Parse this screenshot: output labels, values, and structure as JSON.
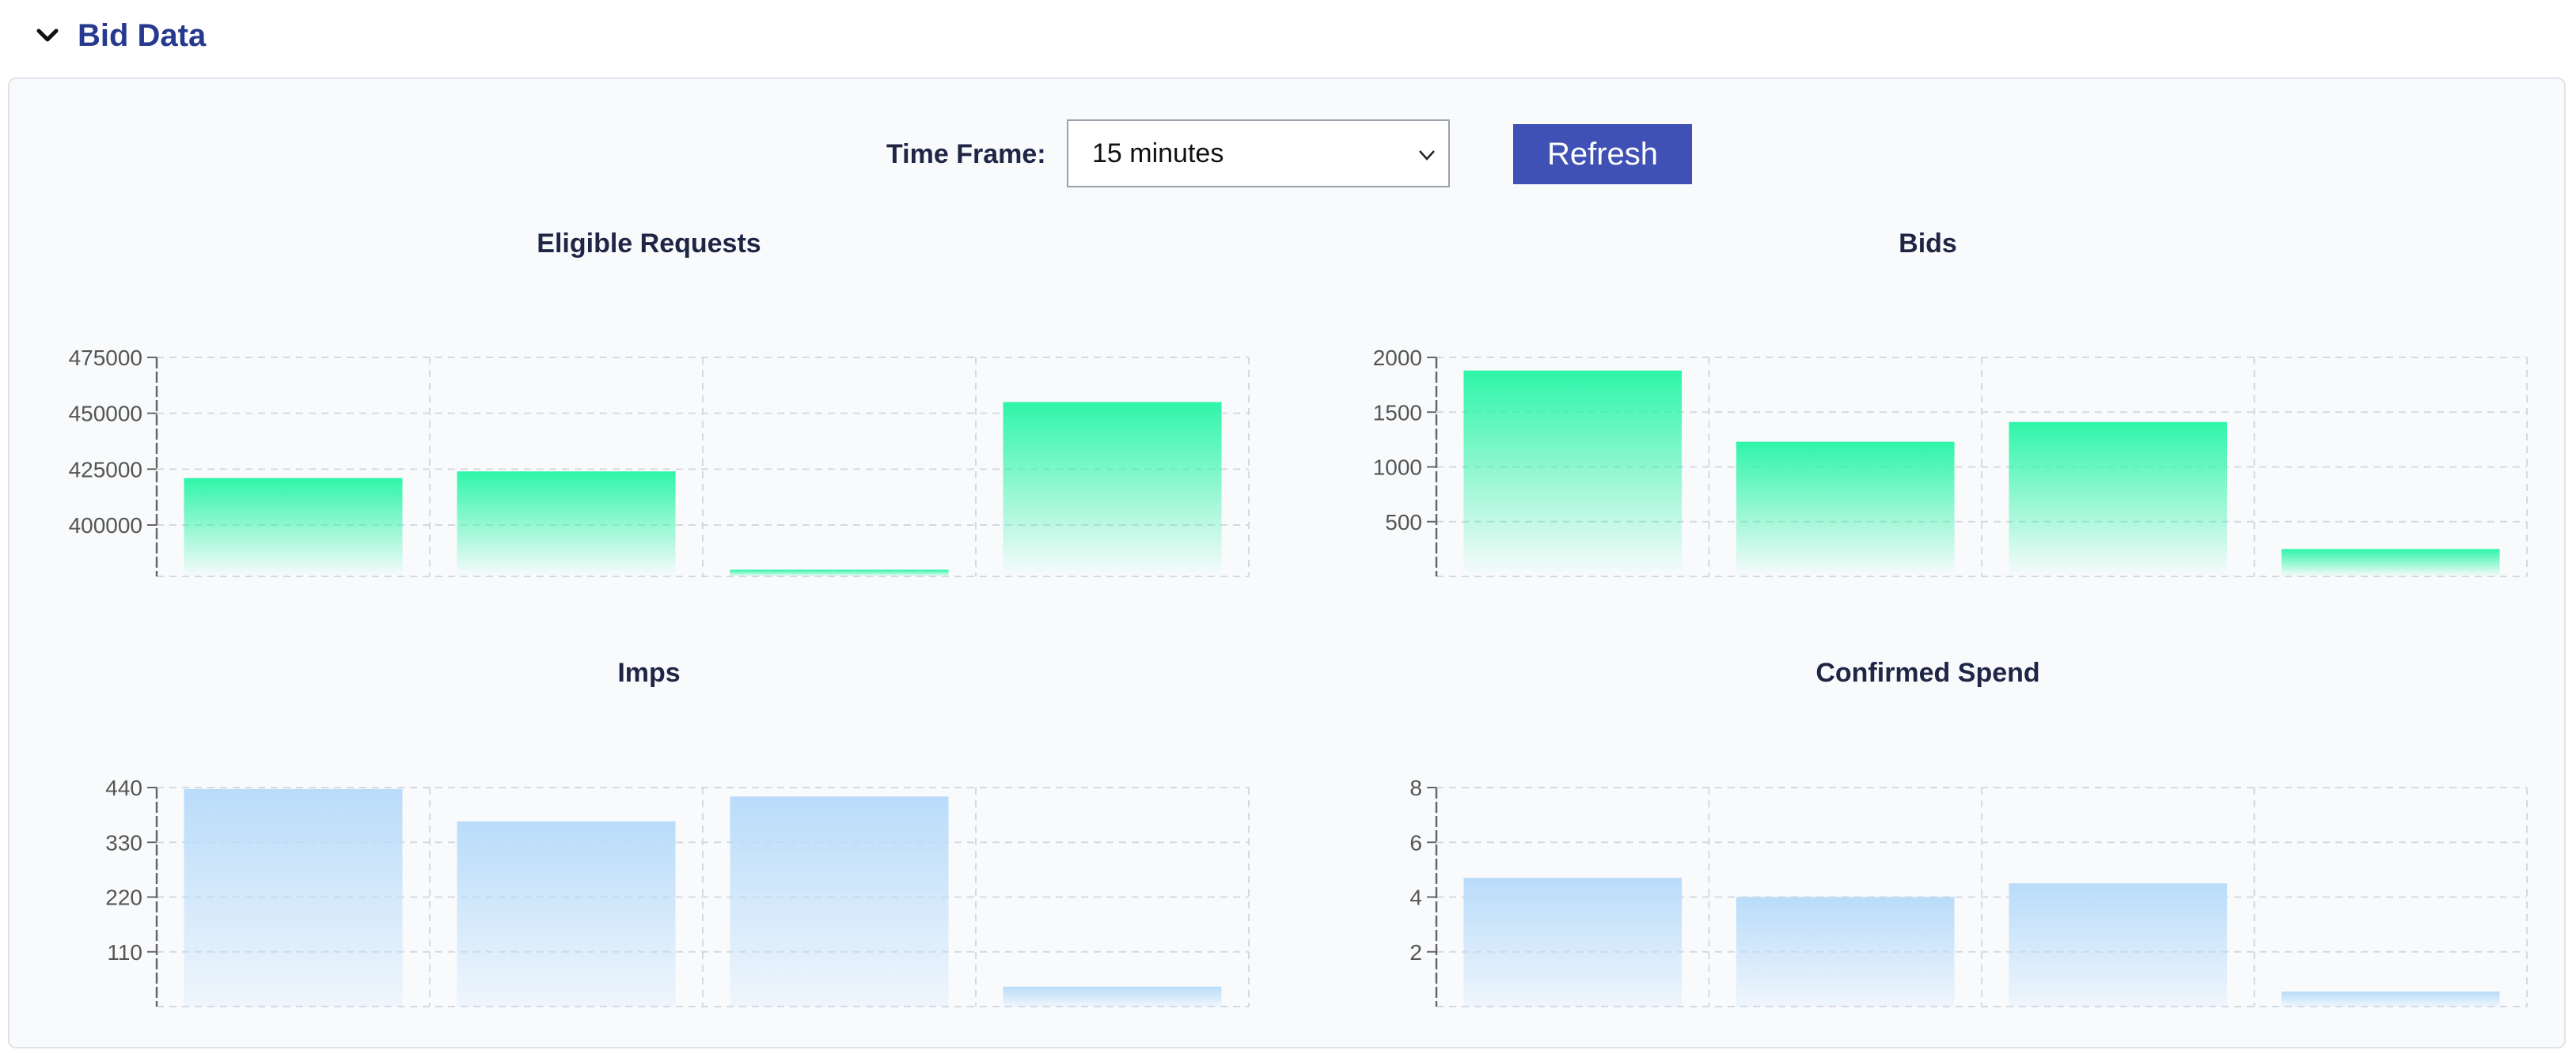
{
  "section": {
    "title": "Bid Data",
    "icon": "chevron-down-icon"
  },
  "controls": {
    "timeframe_label": "Time Frame:",
    "timeframe_value": "15 minutes",
    "refresh_label": "Refresh"
  },
  "colors": {
    "header_text": "#26398f",
    "button": "#3f51b5",
    "green_bar": "#2ef5a8",
    "blue_bar": "#b9dcfa"
  },
  "chart_data": [
    {
      "type": "bar",
      "title": "Eligible Requests",
      "categories": [
        "",
        "",
        "",
        ""
      ],
      "values": [
        421000,
        424000,
        380000,
        455000
      ],
      "yticks": [
        400000,
        425000,
        450000,
        475000
      ],
      "ylim": [
        377000,
        475000
      ],
      "grid": true,
      "color": "green"
    },
    {
      "type": "bar",
      "title": "Bids",
      "categories": [
        "",
        "",
        "",
        ""
      ],
      "values": [
        1880,
        1230,
        1410,
        250
      ],
      "yticks": [
        500,
        1000,
        1500,
        2000
      ],
      "ylim": [
        0,
        2000
      ],
      "grid": true,
      "color": "green"
    },
    {
      "type": "bar",
      "title": "Imps",
      "categories": [
        "",
        "",
        "",
        ""
      ],
      "values": [
        437,
        372,
        422,
        40
      ],
      "yticks": [
        110,
        220,
        330,
        440
      ],
      "ylim": [
        0,
        440
      ],
      "grid": true,
      "color": "blue"
    },
    {
      "type": "bar",
      "title": "Confirmed Spend",
      "categories": [
        "",
        "",
        "",
        ""
      ],
      "values": [
        4.7,
        4.0,
        4.5,
        0.55
      ],
      "yticks": [
        2,
        4,
        6,
        8
      ],
      "ylim": [
        0,
        8
      ],
      "grid": true,
      "color": "blue"
    }
  ]
}
